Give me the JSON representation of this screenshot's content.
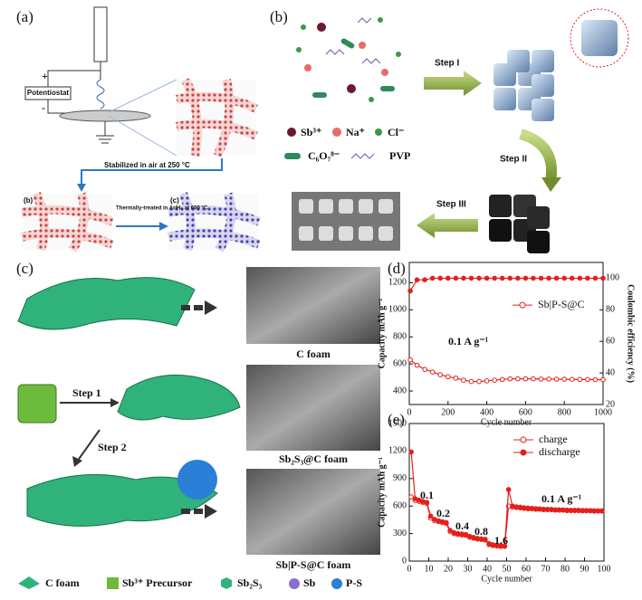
{
  "panel_a": {
    "label": "(a)",
    "potentiostat": "Potentiostat",
    "plus": "+",
    "minus": "-",
    "step_text": "Stabilized in air at 250 °C",
    "sub_b": "(b)",
    "sub_c": "(c)",
    "thermal_text": "Thermally-treated in Ar/H₂ at 600 °C"
  },
  "panel_b": {
    "label": "(b)",
    "species": [
      "Sb³⁺",
      "Na⁺",
      "Cl⁻",
      "C₆O₇⁸⁻",
      "PVP"
    ],
    "steps": [
      "Step I",
      "Step II",
      "Step III"
    ]
  },
  "panel_c": {
    "label": "(c)",
    "steps": [
      "Step 1",
      "Step 2"
    ],
    "captions": [
      "C foam",
      "Sb₂S₃@C foam",
      "Sb|P-S@C foam"
    ],
    "legend": [
      "C foam",
      "Sb³⁺ Precursor",
      "Sb₂S₃",
      "Sb",
      "P-S"
    ]
  },
  "chart_data": [
    {
      "type": "line",
      "label": "(d)",
      "xlabel": "Cycle number",
      "ylabel": "Capacity mAh g⁻¹",
      "y2label": "Coulombic efficiency (%)",
      "x": [
        5,
        40,
        80,
        120,
        160,
        200,
        240,
        280,
        320,
        360,
        400,
        440,
        480,
        520,
        560,
        600,
        640,
        680,
        720,
        760,
        800,
        840,
        880,
        920,
        960,
        1000
      ],
      "series": [
        {
          "name": "Sb|P-S@C",
          "color": "#e3201b",
          "marker": "open",
          "values": [
            630,
            590,
            560,
            540,
            520,
            505,
            495,
            480,
            470,
            470,
            475,
            480,
            485,
            490,
            490,
            490,
            490,
            488,
            488,
            487,
            487,
            486,
            485,
            485,
            484,
            484
          ]
        },
        {
          "color": "#e3201b",
          "marker": "filled",
          "axis": "y2",
          "values": [
            92,
            99,
            99,
            100,
            100,
            100,
            100,
            100,
            100,
            100,
            100,
            100,
            100,
            100,
            100,
            100,
            100,
            100,
            100,
            100,
            100,
            100,
            100,
            100,
            100,
            100
          ]
        }
      ],
      "xlim": [
        0,
        1000
      ],
      "xticks": [
        0,
        200,
        400,
        600,
        800,
        1000
      ],
      "ylim": [
        300,
        1350
      ],
      "yticks": [
        400,
        600,
        800,
        1000,
        1200
      ],
      "y2lim": [
        20,
        110
      ],
      "y2ticks": [
        20,
        40,
        60,
        80,
        100
      ],
      "legend": "center right",
      "annotations": [
        "0.1 A g⁻¹"
      ]
    },
    {
      "type": "line",
      "label": "(e)",
      "xlabel": "Cycle number",
      "ylabel": "Capacity mAh g⁻¹",
      "x": [
        1,
        3,
        5,
        7,
        9,
        11,
        13,
        15,
        17,
        19,
        21,
        23,
        25,
        27,
        29,
        31,
        33,
        35,
        37,
        39,
        41,
        43,
        45,
        47,
        49,
        51,
        53,
        55,
        57,
        59,
        61,
        63,
        65,
        67,
        69,
        71,
        73,
        75,
        77,
        79,
        81,
        83,
        85,
        87,
        89,
        91,
        93,
        95,
        97,
        99
      ],
      "series": [
        {
          "name": "charge",
          "color": "#e3201b",
          "marker": "open",
          "values": [
            700,
            660,
            650,
            640,
            630,
            470,
            440,
            430,
            420,
            410,
            320,
            300,
            290,
            285,
            280,
            260,
            250,
            240,
            235,
            230,
            180,
            170,
            165,
            160,
            160,
            600,
            590,
            585,
            580,
            575,
            570,
            570,
            565,
            565,
            560,
            560,
            560,
            555,
            555,
            555,
            550,
            550,
            550,
            550,
            548,
            548,
            548,
            545,
            545,
            545
          ]
        },
        {
          "name": "discharge",
          "color": "#e3201b",
          "marker": "filled",
          "values": [
            1190,
            680,
            665,
            650,
            640,
            490,
            455,
            440,
            430,
            420,
            335,
            310,
            300,
            295,
            290,
            270,
            258,
            248,
            242,
            238,
            190,
            178,
            172,
            168,
            166,
            780,
            600,
            592,
            588,
            582,
            578,
            576,
            572,
            570,
            566,
            565,
            564,
            560,
            560,
            558,
            556,
            555,
            555,
            554,
            552,
            552,
            551,
            550,
            549,
            548
          ]
        }
      ],
      "xlim": [
        0,
        100
      ],
      "xticks": [
        0,
        10,
        20,
        30,
        40,
        50,
        60,
        70,
        80,
        90,
        100
      ],
      "ylim": [
        0,
        1500
      ],
      "yticks": [
        0,
        300,
        600,
        900,
        1200,
        1500
      ],
      "legend": "upper right",
      "annotations": [
        "0.1",
        "0.2",
        "0.4",
        "0.8",
        "1.6",
        "0.1 A g⁻¹"
      ]
    }
  ]
}
